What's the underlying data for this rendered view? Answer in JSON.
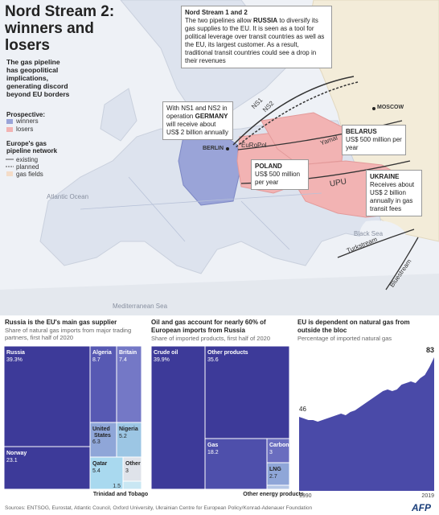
{
  "header": {
    "title": "Nord Stream 2: winners and losers",
    "intro": "The gas pipeline has geopolitical implications, generating discord beyond EU borders"
  },
  "legend": {
    "prospective_title": "Prospective:",
    "prospective": [
      "winners",
      "losers"
    ],
    "network_title": "Europe's gas pipeline network",
    "network": [
      "existing",
      "planned",
      "gas fields"
    ]
  },
  "callouts": {
    "nord_stream": {
      "title": "Nord Stream 1 and 2",
      "parts": [
        "The two pipelines allow ",
        "RUSSIA",
        " to diversify its gas supplies to the EU. It is seen as a tool for political leverage over transit countries as well as the EU, its largest customer. As a result, traditional transit countries could see a drop in their revenues"
      ]
    },
    "germany": {
      "parts": [
        "With NS1 and NS2 in operation ",
        "GERMANY",
        " will receive about US$ 2 billion annually"
      ]
    },
    "belarus": {
      "title": "BELARUS",
      "text": "US$ 500 million per year"
    },
    "poland": {
      "title": "POLAND",
      "text": "US$ 500 million per year"
    },
    "ukraine": {
      "title": "UKRAINE",
      "text": "Receives about US$ 2 billion annually in gas transit fees"
    }
  },
  "map_labels": {
    "pipelines": [
      "NS1",
      "NS2",
      "Yamal",
      "EuRoPol",
      "UPU",
      "Turkstream",
      "Bluestream"
    ],
    "places": [
      "MOSCOW",
      "BERLIN"
    ],
    "seas": [
      "Atlantic Ocean",
      "Black Sea",
      "Mediterranean Sea"
    ]
  },
  "chart_data": [
    {
      "type": "treemap",
      "title": "Russia is the EU's main gas supplier",
      "subtitle": "Share of natural gas imports from major trading partners, first half of 2020",
      "categories": [
        "Russia",
        "Norway",
        "Algeria",
        "Britain",
        "United States",
        "Nigeria",
        "Qatar",
        "Other",
        "Trinidad and Tobago"
      ],
      "values": [
        39.3,
        23.1,
        8.7,
        7.4,
        6.3,
        5.2,
        5.4,
        3,
        1.5
      ],
      "value_labels": [
        "39.3%",
        "23.1",
        "8.7",
        "7.4",
        "6.3",
        "5.2",
        "5.4",
        "3",
        "1.5"
      ],
      "colors": [
        "#3d3a99",
        "#3d3a99",
        "#5759b3",
        "#7478c6",
        "#8fa6d8",
        "#9cc6e4",
        "#a9d9ef",
        "#dfe3ea",
        "#c9e7f3"
      ]
    },
    {
      "type": "treemap",
      "title": "Oil and gas account for nearly 60% of European imports from Russia",
      "subtitle": "Share of imported products, first half of 2020",
      "categories": [
        "Crude oil",
        "Other products",
        "Gas",
        "Carbon",
        "LNG",
        "Other energy products"
      ],
      "values": [
        39.9,
        35.6,
        18.2,
        3,
        2.7,
        0.6
      ],
      "value_labels": [
        "39.9%",
        "35.6",
        "18.2",
        "3",
        "2.7",
        null
      ],
      "colors": [
        "#3d3a99",
        "#3d3a99",
        "#4e4fab",
        "#6a6dbf",
        "#8fa6d8",
        "#b5c7e6"
      ]
    },
    {
      "type": "area",
      "title": "EU is dependent on natural gas from outside the bloc",
      "subtitle": "Percentage of imported natural gas",
      "x": [
        1990,
        1991,
        1992,
        1993,
        1994,
        1995,
        1996,
        1997,
        1998,
        1999,
        2000,
        2001,
        2002,
        2003,
        2004,
        2005,
        2006,
        2007,
        2008,
        2009,
        2010,
        2011,
        2012,
        2013,
        2014,
        2015,
        2016,
        2017,
        2018,
        2019
      ],
      "values": [
        46,
        45,
        44,
        44,
        43,
        44,
        45,
        46,
        47,
        48,
        47,
        49,
        50,
        52,
        54,
        56,
        58,
        60,
        62,
        63,
        62,
        63,
        66,
        67,
        68,
        67,
        70,
        72,
        77,
        83
      ],
      "ylim": [
        0,
        90
      ],
      "color": "#4a4aa8"
    }
  ],
  "footer": {
    "sources": "Sources: ENTSOG, Eurostat, Atlantic Council, Oxford University, Ukrainian Centre for European Policy/Konrad-Adenauer Foundation",
    "logo": "AFP"
  }
}
